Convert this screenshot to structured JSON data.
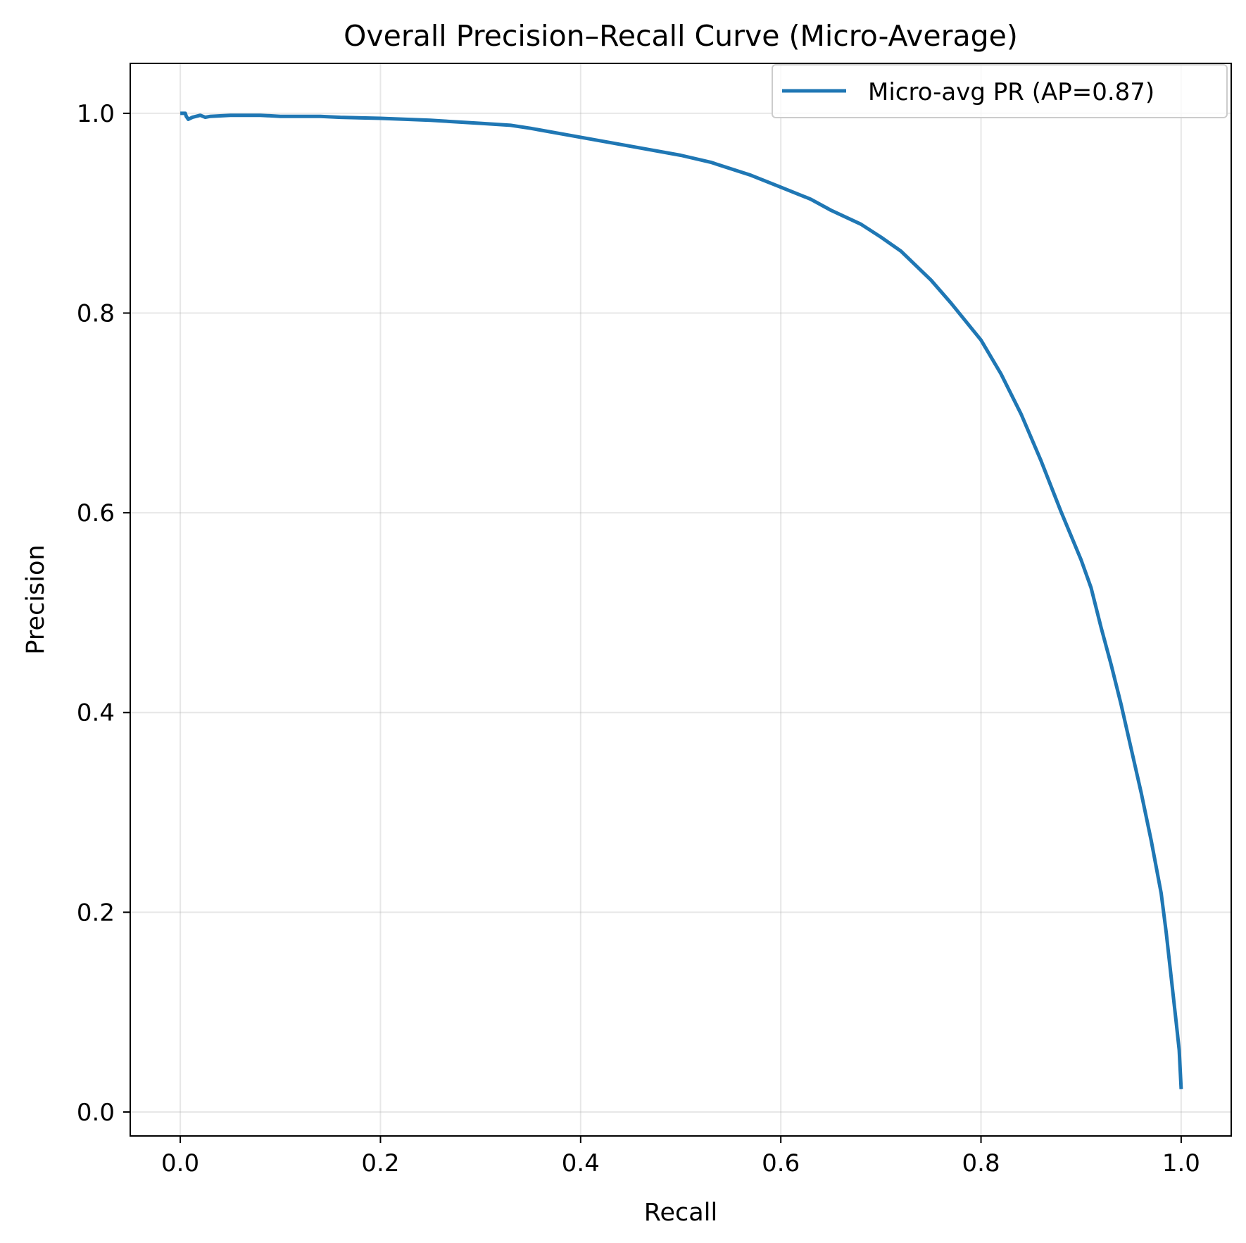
{
  "chart_data": {
    "type": "line",
    "title": "Overall Precision–Recall Curve (Micro-Average)",
    "xlabel": "Recall",
    "ylabel": "Precision",
    "xlim": [
      -0.05,
      1.05
    ],
    "ylim": [
      -0.024,
      1.05
    ],
    "xticks": [
      0.0,
      0.2,
      0.4,
      0.6,
      0.8,
      1.0
    ],
    "xtick_labels": [
      "0.0",
      "0.2",
      "0.4",
      "0.6",
      "0.8",
      "1.0"
    ],
    "yticks": [
      0.0,
      0.2,
      0.4,
      0.6,
      0.8,
      1.0
    ],
    "ytick_labels": [
      "0.0",
      "0.2",
      "0.4",
      "0.6",
      "0.8",
      "1.0"
    ],
    "grid": true,
    "legend_position": "upper right",
    "series": [
      {
        "name": "Micro-avg PR (AP=0.87)",
        "color": "#1f77b4",
        "x": [
          0.0,
          0.005,
          0.006,
          0.008,
          0.012,
          0.02,
          0.025,
          0.03,
          0.05,
          0.08,
          0.1,
          0.14,
          0.16,
          0.2,
          0.25,
          0.3,
          0.33,
          0.35,
          0.4,
          0.45,
          0.5,
          0.53,
          0.57,
          0.6,
          0.63,
          0.65,
          0.68,
          0.7,
          0.72,
          0.75,
          0.77,
          0.8,
          0.82,
          0.84,
          0.86,
          0.88,
          0.9,
          0.91,
          0.92,
          0.93,
          0.94,
          0.95,
          0.96,
          0.97,
          0.98,
          0.985,
          0.99,
          0.995,
          0.998,
          1.0
        ],
        "y": [
          1.0,
          1.0,
          0.997,
          0.994,
          0.996,
          0.998,
          0.996,
          0.997,
          0.998,
          0.998,
          0.997,
          0.997,
          0.996,
          0.995,
          0.993,
          0.99,
          0.988,
          0.985,
          0.976,
          0.967,
          0.958,
          0.951,
          0.938,
          0.926,
          0.914,
          0.903,
          0.889,
          0.876,
          0.862,
          0.833,
          0.81,
          0.773,
          0.739,
          0.699,
          0.652,
          0.601,
          0.553,
          0.525,
          0.485,
          0.448,
          0.408,
          0.364,
          0.32,
          0.272,
          0.219,
          0.18,
          0.135,
          0.09,
          0.062,
          0.023
        ]
      }
    ]
  }
}
